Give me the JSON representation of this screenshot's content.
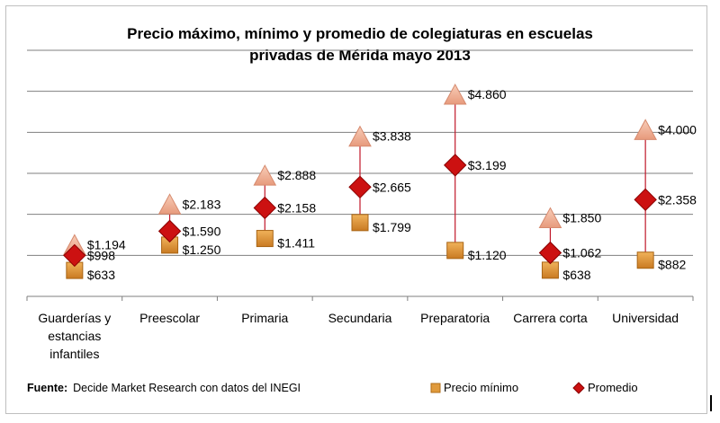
{
  "title_line1": "Precio máximo, mínimo y promedio de colegiaturas en escuelas",
  "title_line2": "privadas de Mérida mayo 2013",
  "footer_label": "Fuente:",
  "footer_text": "Decide Market Research con datos del INEGI",
  "legend": {
    "min_label": "Precio mínimo",
    "avg_label": "Promedio"
  },
  "colors": {
    "min": "#e09a3c",
    "avg": "#cc1111",
    "max": "#f2b49a",
    "range": "#e8a0a8"
  },
  "chart_data": {
    "type": "scatter",
    "title": "Precio máximo, mínimo y promedio de colegiaturas en escuelas privadas de Mérida mayo 2013",
    "categories": [
      [
        "Guarderías y",
        "estancias",
        "infantiles"
      ],
      [
        "Preescolar"
      ],
      [
        "Primaria"
      ],
      [
        "Secundaria"
      ],
      [
        "Preparatoria"
      ],
      [
        "Carrera corta"
      ],
      [
        "Universidad"
      ]
    ],
    "series": [
      {
        "name": "Precio mínimo",
        "marker": "square",
        "values": [
          633,
          1250,
          1411,
          1799,
          1120,
          638,
          882
        ],
        "labels": [
          "$633",
          "$1.250",
          "$1.411",
          "$1.799",
          "$1.120",
          "$638",
          "$882"
        ]
      },
      {
        "name": "Promedio",
        "marker": "diamond",
        "values": [
          998,
          1590,
          2158,
          2665,
          3199,
          1062,
          2358
        ],
        "labels": [
          "$998",
          "$1.590",
          "$2.158",
          "$2.665",
          "$3.199",
          "$1.062",
          "$2.358"
        ]
      },
      {
        "marker": "triangle",
        "values": [
          1194,
          2183,
          2888,
          3838,
          4860,
          1850,
          4000
        ],
        "labels": [
          "$1.194",
          "$2.183",
          "$2.888",
          "$3.838",
          "$4.860",
          "$1.850",
          "$4.000"
        ]
      }
    ],
    "ylim": [
      0,
      6000
    ],
    "grid": true,
    "legend_position": "bottom-right"
  }
}
